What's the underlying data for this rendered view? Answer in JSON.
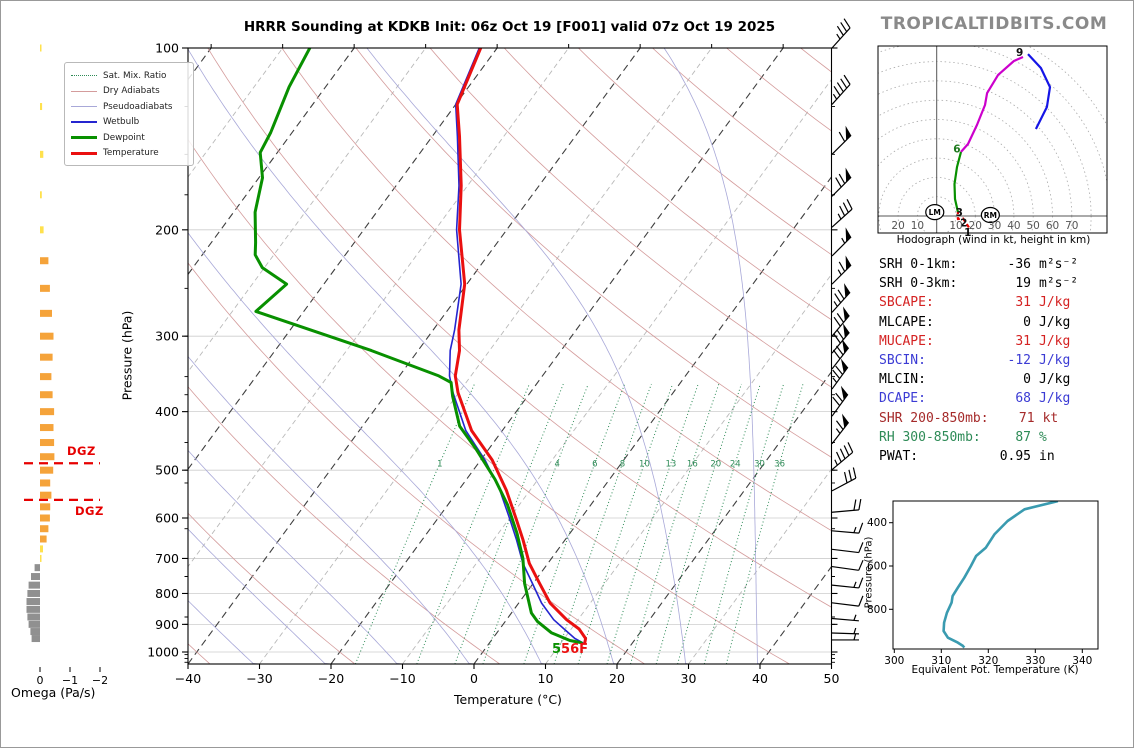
{
  "header": {
    "title": "HRRR Sounding at KDKB Init: 06z Oct 19 [F001] valid 07z Oct 19 2025",
    "logo": "TROPICALTIDBITS.COM"
  },
  "legend": {
    "items": [
      {
        "label": "Sat. Mix. Ratio",
        "color": "#2e8b57",
        "style": "dotted",
        "weight": 1
      },
      {
        "label": "Dry Adiabats",
        "color": "#d49c9c",
        "style": "solid",
        "weight": 1
      },
      {
        "label": "Pseudoadiabats",
        "color": "#a8a8d8",
        "style": "solid",
        "weight": 1
      },
      {
        "label": "Wetbulb",
        "color": "#2525cf",
        "style": "solid",
        "weight": 2
      },
      {
        "label": "Dewpoint",
        "color": "#089000",
        "style": "solid",
        "weight": 3
      },
      {
        "label": "Temperature",
        "color": "#ea1010",
        "style": "solid",
        "weight": 3
      }
    ]
  },
  "labels": {
    "pressure_axis": "Pressure (hPa)",
    "temp_axis": "Temperature (°C)",
    "omega_axis": "Omega (Pa/s)",
    "hodo_caption": "Hodograph (wind in kt, height in km)",
    "thetae_xlabel": "Equivalent Pot. Temperature (K)",
    "thetae_ylabel": "Pressure (hPa)",
    "dgz": "DGZ",
    "sfc_dewp": "5",
    "sfc_temp": "56F"
  },
  "stats": {
    "rows": [
      {
        "label": "SRH 0-1km:",
        "value": "-36",
        "unit": "m²s⁻²",
        "color": "#000000"
      },
      {
        "label": "SRH 0-3km:",
        "value": "19",
        "unit": "m²s⁻²",
        "color": "#000000"
      },
      {
        "label": "SBCAPE:",
        "value": "31",
        "unit": "J/kg",
        "color": "#d42222"
      },
      {
        "label": "MLCAPE:",
        "value": "0",
        "unit": "J/kg",
        "color": "#000000"
      },
      {
        "label": "MUCAPE:",
        "value": "31",
        "unit": "J/kg",
        "color": "#d42222"
      },
      {
        "label": "SBCIN:",
        "value": "-12",
        "unit": "J/kg",
        "color": "#3b3bd4"
      },
      {
        "label": "MLCIN:",
        "value": "0",
        "unit": "J/kg",
        "color": "#000000"
      },
      {
        "label": "DCAPE:",
        "value": "68",
        "unit": "J/kg",
        "color": "#3b3bd4"
      },
      {
        "label": "SHR 200-850mb:",
        "value": "71",
        "unit": "kt",
        "color": "#a52a2a"
      },
      {
        "label": "RH 300-850mb:",
        "value": "87",
        "unit": "%",
        "color": "#2e8b57"
      },
      {
        "label": "PWAT:",
        "value": "0.95",
        "unit": "in",
        "color": "#000000"
      }
    ]
  },
  "chart_data": [
    {
      "id": "skewt",
      "type": "line",
      "title": "HRRR Sounding at KDKB Init: 06z Oct 19 [F001] valid 07z Oct 19 2025",
      "xlabel": "Temperature (°C)",
      "ylabel": "Pressure (hPa)",
      "xlim": [
        -40,
        50
      ],
      "plim": [
        100,
        1047
      ],
      "xticks": [
        -40,
        -30,
        -20,
        -10,
        0,
        10,
        20,
        30,
        40,
        50
      ],
      "yticks": [
        100,
        200,
        300,
        400,
        500,
        600,
        700,
        800,
        900,
        1000
      ],
      "grid": true,
      "legend_position": "upper-left",
      "mixing_ratio_lines": [
        1,
        2,
        3,
        4,
        6,
        8,
        10,
        13,
        16,
        20,
        24,
        30,
        36
      ],
      "mixing_ratio_labels": [
        1,
        4,
        6,
        8,
        10,
        13,
        16,
        20,
        24,
        30,
        36
      ],
      "mixing_label_pressure": 487,
      "isotherms": {
        "start": -120,
        "end": 50,
        "step": 10,
        "bold_every": 20
      },
      "dry_adiabats": {
        "start": -40,
        "end": 240,
        "step": 20
      },
      "pseudoadiabats": {
        "start": -40,
        "end": 40,
        "step": 10
      },
      "surface": {
        "temp_label": "56F",
        "dewp_label": "5"
      },
      "series": [
        {
          "name": "Temperature",
          "color": "#ea1010",
          "width": 3,
          "points": [
            [
              965,
              13.3
            ],
            [
              950,
              13.0
            ],
            [
              916,
              11.1
            ],
            [
              884,
              8.4
            ],
            [
              830,
              4.4
            ],
            [
              770,
              0.9
            ],
            [
              713,
              -2.6
            ],
            [
              652,
              -5.9
            ],
            [
              605,
              -8.8
            ],
            [
              540,
              -13.3
            ],
            [
              481,
              -18.4
            ],
            [
              430,
              -24.3
            ],
            [
              372,
              -30.1
            ],
            [
              349,
              -32.2
            ],
            [
              317,
              -34.2
            ],
            [
              293,
              -36.4
            ],
            [
              246,
              -40.3
            ],
            [
              200,
              -46.6
            ],
            [
              169,
              -50.9
            ],
            [
              140,
              -56.2
            ],
            [
              124,
              -59.8
            ],
            [
              100,
              -62.3
            ]
          ]
        },
        {
          "name": "Dewpoint",
          "color": "#089000",
          "width": 3,
          "points": [
            [
              965,
              12.8
            ],
            [
              957,
              11.0
            ],
            [
              929,
              7.6
            ],
            [
              890,
              4.5
            ],
            [
              862,
              2.8
            ],
            [
              770,
              -1.2
            ],
            [
              700,
              -4.0
            ],
            [
              636,
              -7.4
            ],
            [
              570,
              -11.7
            ],
            [
              518,
              -16.0
            ],
            [
              462,
              -21.7
            ],
            [
              423,
              -26.4
            ],
            [
              377,
              -30.5
            ],
            [
              358,
              -32.1
            ],
            [
              349,
              -34.5
            ],
            [
              317,
              -46.5
            ],
            [
              273,
              -66.7
            ],
            [
              246,
              -65.2
            ],
            [
              231,
              -70.3
            ],
            [
              220,
              -72.6
            ],
            [
              210,
              -73.8
            ],
            [
              187,
              -77.0
            ],
            [
              164,
              -79.5
            ],
            [
              149,
              -82.4
            ],
            [
              138,
              -83.0
            ],
            [
              116,
              -85.1
            ],
            [
              100,
              -86.2
            ]
          ]
        },
        {
          "name": "Wetbulb",
          "color": "#2525cf",
          "width": 1.6,
          "points": [
            [
              965,
              13.0
            ],
            [
              950,
              11.5
            ],
            [
              916,
              9.0
            ],
            [
              884,
              6.6
            ],
            [
              830,
              3.2
            ],
            [
              770,
              -0.1
            ],
            [
              713,
              -3.5
            ],
            [
              652,
              -6.8
            ],
            [
              605,
              -9.7
            ],
            [
              540,
              -14.2
            ],
            [
              481,
              -19.4
            ],
            [
              430,
              -25.1
            ],
            [
              372,
              -30.8
            ],
            [
              349,
              -33.0
            ],
            [
              317,
              -35.5
            ],
            [
              293,
              -37.0
            ],
            [
              246,
              -40.8
            ],
            [
              200,
              -47.0
            ],
            [
              169,
              -51.2
            ],
            [
              140,
              -56.5
            ],
            [
              124,
              -60.0
            ],
            [
              100,
              -62.5
            ]
          ]
        }
      ]
    },
    {
      "id": "omega",
      "type": "bar",
      "xlabel": "Omega (Pa/s)",
      "xticks": [
        0,
        -1,
        -2
      ],
      "colors": {
        "up": "#f5a33a",
        "weak": "#ffe14d",
        "down": "#909090",
        "dgz": "#e60000"
      },
      "dgz_levels": [
        487,
        560
      ],
      "bars": [
        [
          100,
          -0.04
        ],
        [
          125,
          -0.07
        ],
        [
          150,
          -0.11
        ],
        [
          175,
          -0.06
        ],
        [
          200,
          -0.12
        ],
        [
          225,
          -0.28
        ],
        [
          250,
          -0.33
        ],
        [
          275,
          -0.4
        ],
        [
          300,
          -0.45
        ],
        [
          325,
          -0.42
        ],
        [
          350,
          -0.38
        ],
        [
          375,
          -0.42
        ],
        [
          400,
          -0.47
        ],
        [
          425,
          -0.45
        ],
        [
          450,
          -0.47
        ],
        [
          475,
          -0.48
        ],
        [
          500,
          -0.44
        ],
        [
          525,
          -0.34
        ],
        [
          550,
          -0.38
        ],
        [
          575,
          -0.34
        ],
        [
          600,
          -0.33
        ],
        [
          625,
          -0.28
        ],
        [
          650,
          -0.22
        ],
        [
          675,
          -0.1
        ],
        [
          700,
          -0.05
        ],
        [
          725,
          0.18
        ],
        [
          750,
          0.3
        ],
        [
          775,
          0.38
        ],
        [
          800,
          0.42
        ],
        [
          825,
          0.45
        ],
        [
          850,
          0.45
        ],
        [
          875,
          0.42
        ],
        [
          900,
          0.38
        ],
        [
          925,
          0.32
        ],
        [
          950,
          0.28
        ]
      ]
    },
    {
      "id": "hodograph",
      "type": "line",
      "caption": "Hodograph (wind in kt, height in km)",
      "ring_step_kt": 10,
      "ring_labels_right": [
        10,
        20,
        30,
        40,
        50,
        60,
        70
      ],
      "ring_labels_left": [
        20,
        10
      ],
      "segments": [
        {
          "name": "0-3km",
          "color": "#e60000",
          "dashed": true,
          "uv": [
            [
              16.7,
              -5.9
            ],
            [
              13.6,
              -1.2
            ],
            [
              11.0,
              -1.6
            ],
            [
              11.0,
              2.1
            ]
          ]
        },
        {
          "name": "3-6km",
          "color": "#089000",
          "dashed": false,
          "uv": [
            [
              11.0,
              2.1
            ],
            [
              9.5,
              8.8
            ],
            [
              9.2,
              16.6
            ],
            [
              10.5,
              25.4
            ],
            [
              12.6,
              33.2
            ]
          ]
        },
        {
          "name": "6-9km",
          "color": "#cc00cc",
          "dashed": false,
          "uv": [
            [
              12.6,
              33.2
            ],
            [
              16.2,
              37.3
            ],
            [
              20.9,
              47.2
            ],
            [
              25.0,
              57.5
            ],
            [
              26.1,
              63.7
            ],
            [
              31.8,
              73.1
            ],
            [
              40.0,
              80.3
            ],
            [
              44.7,
              82.4
            ]
          ]
        },
        {
          "name": "9km+",
          "color": "#1515e6",
          "dashed": false,
          "uv": [
            [
              47.3,
              83.9
            ],
            [
              54.0,
              76.7
            ],
            [
              58.7,
              66.8
            ],
            [
              57.1,
              56.5
            ],
            [
              51.4,
              45.1
            ]
          ]
        }
      ],
      "height_labels": [
        {
          "text": "1",
          "u": 16.1,
          "v": -8.9,
          "color": "#111111"
        },
        {
          "text": "2",
          "u": 14.0,
          "v": -3.9,
          "color": "#111111"
        },
        {
          "text": "3",
          "u": 11.7,
          "v": 1.6,
          "color": "#111111"
        },
        {
          "text": "6",
          "u": 10.5,
          "v": 34.5,
          "color": "#1e7a1e"
        },
        {
          "text": "9",
          "u": 43.0,
          "v": 84.5,
          "color": "#111111"
        }
      ],
      "markers": [
        {
          "label": "LM",
          "u": -1.0,
          "v": 2.0
        },
        {
          "label": "RM",
          "u": 27.8,
          "v": 0.5
        }
      ]
    },
    {
      "id": "thetae",
      "type": "line",
      "xlabel": "Equivalent Pot. Temperature (K)",
      "ylabel": "Pressure (hPa)",
      "xticks": [
        300,
        310,
        320,
        330,
        340
      ],
      "yticks": [
        400,
        600,
        800
      ],
      "xlim": [
        300,
        343
      ],
      "plim": [
        300,
        983
      ],
      "color": "#3a9bb0",
      "points": [
        [
          977,
          314.9
        ],
        [
          969,
          314.6
        ],
        [
          954,
          313.5
        ],
        [
          931,
          311.4
        ],
        [
          900,
          310.5
        ],
        [
          862,
          310.6
        ],
        [
          816,
          311.2
        ],
        [
          769,
          312.2
        ],
        [
          739,
          312.4
        ],
        [
          700,
          313.5
        ],
        [
          654,
          314.9
        ],
        [
          600,
          316.3
        ],
        [
          554,
          317.4
        ],
        [
          515,
          319.5
        ],
        [
          454,
          321.3
        ],
        [
          392,
          324.1
        ],
        [
          338,
          327.7
        ],
        [
          300,
          334.8
        ]
      ]
    },
    {
      "id": "windbarbs",
      "type": "scatter",
      "units": "kt",
      "barbs": [
        {
          "p": 100,
          "ang": 42,
          "spd": 35
        },
        {
          "p": 124,
          "ang": 42,
          "spd": 45
        },
        {
          "p": 150,
          "ang": 45,
          "spd": 60
        },
        {
          "p": 176,
          "ang": 45,
          "spd": 70
        },
        {
          "p": 198,
          "ang": 48,
          "spd": 35
        },
        {
          "p": 221,
          "ang": 45,
          "spd": 55
        },
        {
          "p": 246,
          "ang": 45,
          "spd": 65
        },
        {
          "p": 274,
          "ang": 42,
          "spd": 75
        },
        {
          "p": 300,
          "ang": 40,
          "spd": 70
        },
        {
          "p": 320,
          "ang": 40,
          "spd": 70
        },
        {
          "p": 340,
          "ang": 38,
          "spd": 70
        },
        {
          "p": 367,
          "ang": 36,
          "spd": 75
        },
        {
          "p": 407,
          "ang": 36,
          "spd": 70
        },
        {
          "p": 452,
          "ang": 38,
          "spd": 65
        },
        {
          "p": 499,
          "ang": 50,
          "spd": 45
        },
        {
          "p": 541,
          "ang": 62,
          "spd": 30
        },
        {
          "p": 587,
          "ang": 85,
          "spd": 20
        },
        {
          "p": 630,
          "ang": 95,
          "spd": 15
        },
        {
          "p": 676,
          "ang": 97,
          "spd": 10
        },
        {
          "p": 722,
          "ang": 98,
          "spd": 10
        },
        {
          "p": 775,
          "ang": 96,
          "spd": 15
        },
        {
          "p": 829,
          "ang": 97,
          "spd": 10
        },
        {
          "p": 880,
          "ang": 95,
          "spd": 5
        },
        {
          "p": 930,
          "ang": 92,
          "spd": 5
        },
        {
          "p": 955,
          "ang": 90,
          "spd": 5
        }
      ]
    }
  ]
}
